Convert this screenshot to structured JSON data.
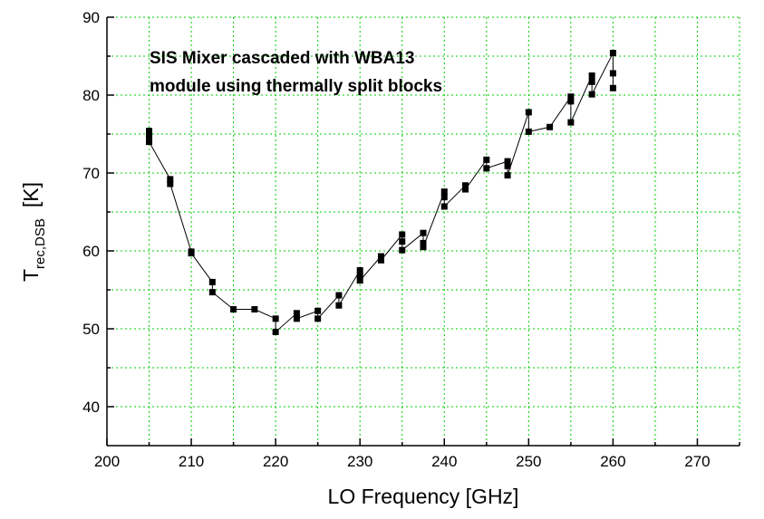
{
  "chart_data": {
    "type": "line",
    "annotation": [
      "SIS Mixer cascaded with WBA13",
      "module using thermally split blocks"
    ],
    "x_label": "LO Frequency [GHz]",
    "y_label": {
      "main": "T",
      "sub": "rec,DSB",
      "unit": "[K]"
    },
    "x": [
      205,
      205,
      205,
      207.5,
      207.5,
      210,
      210,
      212.5,
      212.5,
      215,
      217.5,
      220,
      220,
      222.5,
      222.5,
      225,
      225,
      227.5,
      227.5,
      230,
      230,
      230,
      232.5,
      232.5,
      235,
      235,
      235,
      237.5,
      237.5,
      237.5,
      240,
      240,
      240,
      242.5,
      242.5,
      245,
      245,
      247.5,
      247.5,
      247.5,
      250,
      250,
      252.5,
      255,
      255,
      255,
      257.5,
      257.5,
      257.5,
      260,
      260,
      260
    ],
    "series": [
      {
        "color": "#000000",
        "values": [
          75.4,
          74.8,
          74.0,
          69.2,
          68.6,
          59.9,
          59.7,
          56.0,
          54.7,
          52.5,
          52.5,
          51.3,
          49.6,
          52.0,
          51.3,
          52.3,
          51.3,
          54.3,
          53.0,
          57.5,
          56.8,
          56.2,
          59.3,
          58.8,
          62.1,
          61.2,
          60.1,
          62.3,
          61.0,
          60.5,
          67.6,
          66.9,
          65.7,
          68.4,
          67.9,
          71.7,
          70.6,
          71.5,
          70.9,
          69.7,
          77.8,
          75.3,
          75.9,
          79.8,
          79.2,
          76.5,
          82.5,
          81.7,
          80.1,
          85.4,
          82.8,
          80.9
        ]
      }
    ],
    "xlim": [
      200,
      275
    ],
    "ylim": [
      35,
      90
    ],
    "xticks": [
      200,
      210,
      220,
      230,
      240,
      250,
      260,
      270
    ],
    "yticks": [
      40,
      50,
      60,
      70,
      80,
      90
    ],
    "xminorticks": [
      205,
      215,
      225,
      235,
      245,
      255,
      265,
      275
    ],
    "yminorticks": [
      45,
      55,
      65,
      75,
      85
    ],
    "grid": true,
    "grid_color": "#00cc00"
  }
}
